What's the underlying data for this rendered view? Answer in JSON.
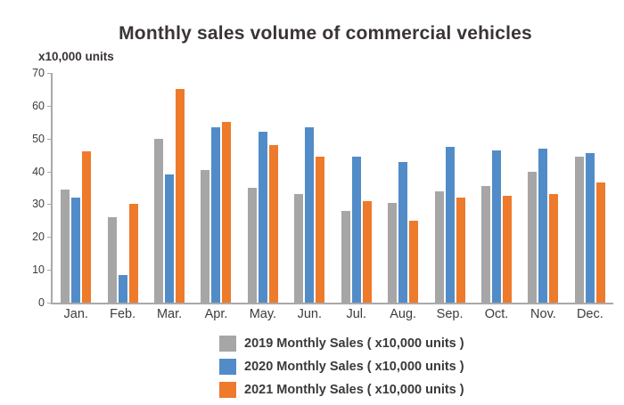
{
  "chart": {
    "title": "Monthly sales volume of commercial vehicles",
    "units_label": "x10,000 units"
  },
  "chart_data": {
    "type": "bar",
    "title": "Monthly sales volume of commercial vehicles",
    "xlabel": "",
    "ylabel": "x10,000 units",
    "ylim": [
      0,
      70
    ],
    "y_ticks": [
      0,
      10,
      20,
      30,
      40,
      50,
      60,
      70
    ],
    "grid": false,
    "legend_position": "bottom",
    "categories": [
      "Jan.",
      "Feb.",
      "Mar.",
      "Apr.",
      "May.",
      "Jun.",
      "Jul.",
      "Aug.",
      "Sep.",
      "Oct.",
      "Nov.",
      "Dec."
    ],
    "series": [
      {
        "name": "2019 Monthly Sales ( x10,000 units )",
        "color": "#a6a6a6",
        "values": [
          34.5,
          26,
          50,
          40.5,
          35,
          33,
          28,
          30.5,
          34,
          35.5,
          40,
          44.5
        ]
      },
      {
        "name": "2020 Monthly Sales ( x10,000 units )",
        "color": "#528cc8",
        "values": [
          32,
          8.5,
          39,
          53.5,
          52,
          53.5,
          44.5,
          43,
          47.5,
          46.5,
          47,
          45.5
        ]
      },
      {
        "name": "2021 Monthly Sales ( x10,000 units )",
        "color": "#ee7a2b",
        "values": [
          46,
          30,
          65,
          55,
          48,
          44.5,
          31,
          25,
          32,
          32.5,
          33,
          36.5
        ]
      }
    ]
  },
  "axis_colors": {
    "axis_line": "#a9a9a9",
    "tick_text": "#3c3c3c"
  }
}
